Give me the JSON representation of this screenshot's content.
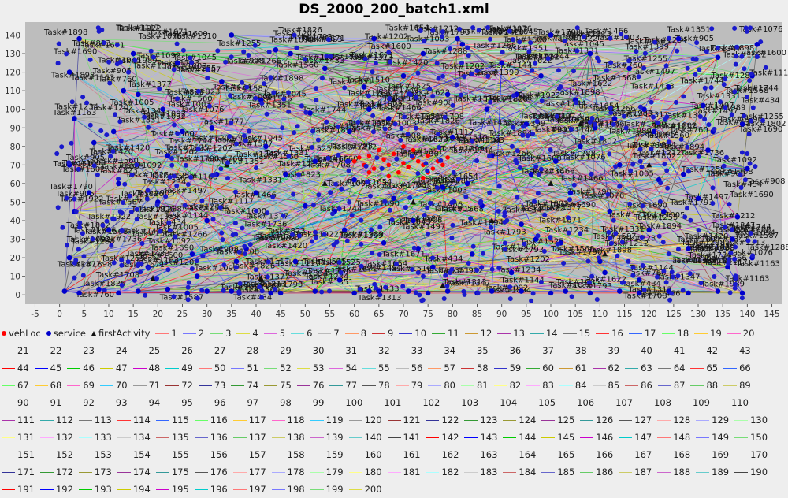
{
  "chart_data": {
    "type": "scatter",
    "title": "DS_2000_200_batch1.xml",
    "xlabel": "",
    "ylabel": "",
    "xlim": [
      -7,
      147
    ],
    "ylim": [
      -5,
      147
    ],
    "xticks": [
      -5,
      0,
      5,
      10,
      15,
      20,
      25,
      30,
      35,
      40,
      45,
      50,
      55,
      60,
      65,
      70,
      75,
      80,
      85,
      90,
      95,
      100,
      105,
      110,
      115,
      120,
      125,
      130,
      135,
      140,
      145
    ],
    "yticks": [
      0,
      10,
      20,
      30,
      40,
      50,
      60,
      70,
      80,
      90,
      100,
      110,
      120,
      130,
      140
    ],
    "grid": false,
    "legend_placement": "bottom",
    "series": [
      {
        "name": "vehLoc",
        "marker": "circle",
        "color": "#ff0000",
        "points": [
          [
            60,
            72
          ],
          [
            62,
            70
          ],
          [
            63,
            75
          ],
          [
            64,
            68
          ],
          [
            66,
            73
          ],
          [
            67,
            70
          ],
          [
            68,
            76
          ],
          [
            70,
            71
          ],
          [
            71,
            69
          ],
          [
            72,
            74
          ],
          [
            73,
            72
          ],
          [
            74,
            70
          ],
          [
            75,
            75
          ],
          [
            76,
            68
          ],
          [
            77,
            72
          ],
          [
            78,
            70
          ],
          [
            65,
            78
          ],
          [
            69,
            66
          ],
          [
            72,
            78
          ],
          [
            75,
            66
          ],
          [
            61,
            74
          ],
          [
            79,
            74
          ],
          [
            70,
            80
          ],
          [
            67,
            64
          ],
          [
            74,
            63
          ],
          [
            63,
            66
          ]
        ]
      },
      {
        "name": "service",
        "marker": "circle",
        "color": "#0000cc",
        "points": [
          [
            1,
            2
          ],
          [
            4,
            1
          ],
          [
            8,
            3
          ],
          [
            12,
            1
          ],
          [
            16,
            2
          ],
          [
            22,
            3
          ],
          [
            26,
            1
          ],
          [
            30,
            2
          ],
          [
            35,
            2
          ],
          [
            43,
            1
          ],
          [
            45,
            1
          ],
          [
            52,
            2
          ],
          [
            60,
            1
          ],
          [
            63,
            2
          ],
          [
            65,
            2
          ],
          [
            71,
            2
          ],
          [
            75,
            1
          ],
          [
            79,
            2
          ],
          [
            85,
            1
          ],
          [
            88,
            2
          ],
          [
            94,
            2
          ],
          [
            100,
            1
          ],
          [
            103,
            2
          ],
          [
            108,
            1
          ],
          [
            114,
            2
          ],
          [
            118,
            1
          ],
          [
            124,
            2
          ],
          [
            128,
            1
          ],
          [
            134,
            2
          ],
          [
            139,
            1
          ],
          [
            2,
            20
          ],
          [
            3,
            45
          ],
          [
            2,
            70
          ],
          [
            3,
            95
          ],
          [
            2,
            120
          ],
          [
            4,
            138
          ],
          [
            10,
            35
          ],
          [
            12,
            60
          ],
          [
            11,
            88
          ],
          [
            13,
            110
          ],
          [
            15,
            130
          ],
          [
            18,
            15
          ],
          [
            20,
            50
          ],
          [
            22,
            75
          ],
          [
            21,
            100
          ],
          [
            24,
            125
          ],
          [
            28,
            10
          ],
          [
            30,
            40
          ],
          [
            32,
            65
          ],
          [
            31,
            90
          ],
          [
            33,
            115
          ],
          [
            35,
            140
          ],
          [
            38,
            25
          ],
          [
            40,
            55
          ],
          [
            42,
            80
          ],
          [
            41,
            105
          ],
          [
            44,
            132
          ],
          [
            48,
            18
          ],
          [
            50,
            48
          ],
          [
            52,
            72
          ],
          [
            51,
            98
          ],
          [
            54,
            122
          ],
          [
            57,
            8
          ],
          [
            58,
            35
          ],
          [
            60,
            62
          ],
          [
            59,
            88
          ],
          [
            62,
            112
          ],
          [
            64,
            138
          ],
          [
            66,
            28
          ],
          [
            68,
            52
          ],
          [
            67,
            95
          ],
          [
            70,
            118
          ],
          [
            72,
            40
          ],
          [
            74,
            130
          ],
          [
            76,
            15
          ],
          [
            78,
            58
          ],
          [
            80,
            85
          ],
          [
            79,
            108
          ],
          [
            82,
            135
          ],
          [
            84,
            22
          ],
          [
            86,
            48
          ],
          [
            88,
            75
          ],
          [
            87,
            100
          ],
          [
            90,
            125
          ],
          [
            92,
            12
          ],
          [
            94,
            38
          ],
          [
            96,
            65
          ],
          [
            95,
            92
          ],
          [
            98,
            118
          ],
          [
            100,
            140
          ],
          [
            102,
            28
          ],
          [
            104,
            55
          ],
          [
            106,
            80
          ],
          [
            105,
            105
          ],
          [
            108,
            130
          ],
          [
            110,
            18
          ],
          [
            112,
            45
          ],
          [
            114,
            70
          ],
          [
            113,
            95
          ],
          [
            116,
            122
          ],
          [
            118,
            8
          ],
          [
            120,
            35
          ],
          [
            122,
            62
          ],
          [
            121,
            88
          ],
          [
            124,
            112
          ],
          [
            126,
            138
          ],
          [
            128,
            25
          ],
          [
            130,
            52
          ],
          [
            132,
            78
          ],
          [
            131,
            102
          ],
          [
            134,
            128
          ],
          [
            136,
            15
          ],
          [
            138,
            42
          ],
          [
            140,
            68
          ],
          [
            139,
            92
          ],
          [
            141,
            118
          ],
          [
            142,
            135
          ],
          [
            6,
            55
          ],
          [
            7,
            82
          ],
          [
            25,
            88
          ],
          [
            36,
            18
          ],
          [
            47,
            130
          ],
          [
            56,
            45
          ],
          [
            73,
            25
          ],
          [
            83,
            60
          ],
          [
            93,
            108
          ],
          [
            101,
            72
          ],
          [
            111,
            12
          ],
          [
            119,
            100
          ],
          [
            127,
            65
          ],
          [
            137,
            30
          ],
          [
            141,
            20
          ],
          [
            16,
            108
          ],
          [
            27,
            22
          ],
          [
            46,
            65
          ],
          [
            63,
            100
          ],
          [
            81,
            138
          ],
          [
            97,
            30
          ],
          [
            109,
            90
          ],
          [
            123,
            45
          ],
          [
            133,
            88
          ]
        ]
      },
      {
        "name": "firstActivity",
        "marker": "triangle",
        "color": "#111111",
        "points": [
          [
            19,
            9
          ],
          [
            41,
            9
          ],
          [
            54,
            60
          ],
          [
            72,
            50
          ],
          [
            78,
            5
          ],
          [
            88,
            40
          ],
          [
            100,
            60
          ],
          [
            106,
            92
          ],
          [
            111,
            22
          ],
          [
            120,
            70
          ],
          [
            68,
            105
          ],
          [
            34,
            70
          ]
        ]
      }
    ],
    "route_labels": [
      "1",
      "2",
      "3",
      "4",
      "5",
      "6",
      "7",
      "8",
      "9",
      "10",
      "11",
      "12",
      "13",
      "14",
      "15",
      "16",
      "17",
      "18",
      "19",
      "20",
      "21",
      "22",
      "23",
      "24",
      "25",
      "26",
      "27",
      "28",
      "29",
      "30",
      "31",
      "32",
      "33",
      "34",
      "35",
      "36",
      "37",
      "38",
      "39",
      "40",
      "41",
      "42",
      "43",
      "44",
      "45",
      "46",
      "47",
      "48",
      "49",
      "50",
      "51",
      "52",
      "53",
      "54",
      "55",
      "56",
      "57",
      "58",
      "59",
      "60",
      "61",
      "62",
      "63",
      "64",
      "65",
      "66",
      "67",
      "68",
      "69",
      "70",
      "71",
      "72",
      "73",
      "74",
      "75",
      "76",
      "77",
      "78",
      "79",
      "80",
      "81",
      "82",
      "83",
      "84",
      "85",
      "86",
      "87",
      "88",
      "89",
      "90",
      "91",
      "92",
      "93",
      "94",
      "95",
      "96",
      "97",
      "98",
      "99",
      "100",
      "101",
      "102",
      "103",
      "104",
      "105",
      "106",
      "107",
      "108",
      "109",
      "110",
      "111",
      "112",
      "113",
      "114",
      "115",
      "116",
      "117",
      "118",
      "119",
      "120",
      "121",
      "122",
      "123",
      "124",
      "125",
      "126",
      "127",
      "128",
      "129",
      "130",
      "131",
      "132",
      "133",
      "134",
      "135",
      "136",
      "137",
      "138",
      "139",
      "140",
      "141",
      "142",
      "143",
      "144",
      "145",
      "146",
      "147",
      "148",
      "149",
      "150",
      "151",
      "152",
      "153",
      "154",
      "155",
      "156",
      "157",
      "158",
      "159",
      "160",
      "161",
      "162",
      "163",
      "164",
      "165",
      "166",
      "167",
      "168",
      "169",
      "170",
      "171",
      "172",
      "173",
      "174",
      "175",
      "176",
      "177",
      "178",
      "179",
      "180",
      "181",
      "182",
      "183",
      "184",
      "185",
      "186",
      "187",
      "188",
      "189",
      "190",
      "191",
      "192",
      "193",
      "194",
      "195",
      "196",
      "197",
      "198",
      "199",
      "200"
    ],
    "route_colors": [
      "#ff7777",
      "#7777ff",
      "#77dd77",
      "#dddd44",
      "#dd66dd",
      "#66dddd",
      "#bbbbbb",
      "#ff9966",
      "#cc3333",
      "#3333cc",
      "#33aa33",
      "#cc9933",
      "#aa33aa",
      "#33aaaa",
      "#777777",
      "#ff3333",
      "#3366ff",
      "#66ff66",
      "#ffcc33",
      "#ff66cc",
      "#33ccff",
      "#999999",
      "#993333",
      "#333399",
      "#339933",
      "#999933",
      "#993399",
      "#339999",
      "#555555",
      "#ffaaaa",
      "#aaaaff",
      "#aaffaa",
      "#ffff88",
      "#ffaaff",
      "#aaffff",
      "#cccccc",
      "#cc6666",
      "#6666cc",
      "#66cc66",
      "#cccc66",
      "#cc66cc",
      "#66cccc",
      "#444444",
      "#ff0000",
      "#0000ff",
      "#00cc00",
      "#cccc00",
      "#cc00cc",
      "#00cccc"
    ],
    "task_labels": [
      "Task#1331",
      "Task#1690",
      "Task#434",
      "Task#1744",
      "Task#908",
      "Task#1313",
      "Task#1793",
      "Task#1525",
      "Task#1202",
      "Task#1347",
      "Task#1922",
      "Task#1497",
      "Task#1163",
      "Task#1420",
      "Task#1005",
      "Task#1568",
      "Task#823",
      "Task#1092",
      "Task#1255",
      "Task#1600",
      "Task#1802",
      "Task#1433",
      "Task#760",
      "Task#1288",
      "Task#1671",
      "Task#1045",
      "Task#1399",
      "Task#1826",
      "Task#905",
      "Task#1510",
      "Task#1117",
      "Task#1736",
      "Task#1212",
      "Task#1654",
      "Task#1898",
      "Task#1003",
      "Task#1377",
      "Task#1560",
      "Task#1790",
      "Task#1144",
      "Task#1234",
      "Task#1466",
      "Task#1708",
      "Task#1989",
      "Task#1076",
      "Task#1622",
      "Task#1351",
      "Task#1894",
      "Task#1587",
      "Task#1266"
    ]
  }
}
